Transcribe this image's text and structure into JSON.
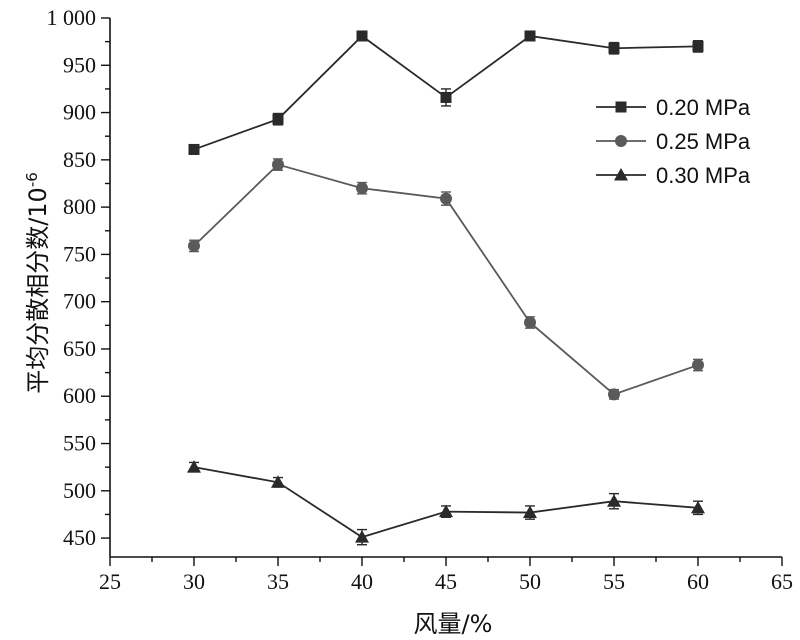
{
  "chart_data": {
    "type": "line",
    "title": "",
    "xlabel": "风量/%",
    "ylabel_main": "平均分散相分数/10",
    "ylabel_exponent": "-6",
    "xlim": [
      25,
      65
    ],
    "ylim": [
      430,
      1000
    ],
    "x_ticks": [
      "25",
      "30",
      "35",
      "40",
      "45",
      "50",
      "55",
      "60",
      "65"
    ],
    "y_ticks": [
      {
        "value": 450,
        "label": "450"
      },
      {
        "value": 500,
        "label": "500"
      },
      {
        "value": 550,
        "label": "550"
      },
      {
        "value": 600,
        "label": "600"
      },
      {
        "value": 650,
        "label": "650"
      },
      {
        "value": 700,
        "label": "700"
      },
      {
        "value": 750,
        "label": "750"
      },
      {
        "value": 800,
        "label": "800"
      },
      {
        "value": 850,
        "label": "850"
      },
      {
        "value": 900,
        "label": "900"
      },
      {
        "value": 950,
        "label": "950"
      },
      {
        "value": 1000,
        "label": "1 000"
      }
    ],
    "grid": false,
    "legend_position": "top-right",
    "x": [
      30,
      35,
      40,
      45,
      50,
      55,
      60
    ],
    "series": [
      {
        "name": "0.20 MPa",
        "marker": "square",
        "color": "#2a2a2a",
        "values": [
          861,
          893,
          981,
          916,
          981,
          968,
          970
        ],
        "errors": [
          5,
          6,
          5,
          9,
          5,
          6,
          6
        ]
      },
      {
        "name": "0.25 MPa",
        "marker": "circle",
        "color": "#5a5a5a",
        "values": [
          759,
          845,
          820,
          809,
          678,
          602,
          633
        ],
        "errors": [
          6,
          6,
          6,
          7,
          6,
          5,
          6
        ]
      },
      {
        "name": "0.30 MPa",
        "marker": "triangle",
        "color": "#2a2a2a",
        "values": [
          525,
          509,
          451,
          478,
          477,
          489,
          482
        ],
        "errors": [
          5,
          5,
          8,
          6,
          7,
          8,
          7
        ]
      }
    ]
  }
}
